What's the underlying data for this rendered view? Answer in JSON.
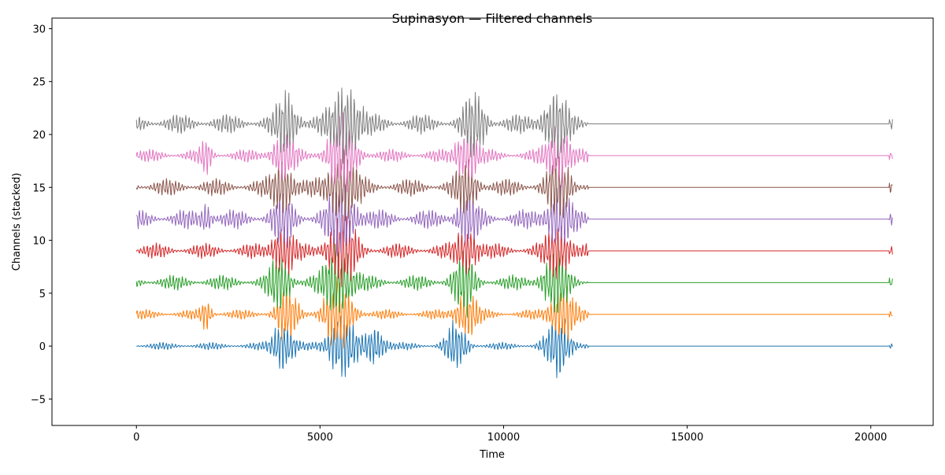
{
  "chart_data": {
    "type": "line",
    "title": "Supinasyon — Filtered channels",
    "xlabel": "Time",
    "ylabel": "Channels (stacked)",
    "xlim": [
      -2300,
      21700
    ],
    "ylim": [
      -7.5,
      31
    ],
    "x_ticks": [
      0,
      5000,
      10000,
      15000,
      20000
    ],
    "y_ticks": [
      -5,
      0,
      5,
      10,
      15,
      20,
      25,
      30
    ],
    "grid": false,
    "legend": false,
    "x_range": [
      0,
      20600
    ],
    "active_end": 12300,
    "tail_start": 20500,
    "series": [
      {
        "offset": 0,
        "color": "#1f77b4",
        "base_amp": 0.35,
        "bursts": [
          [
            4000,
            300,
            2.6
          ],
          [
            5600,
            400,
            3.2
          ],
          [
            6500,
            300,
            2.0
          ],
          [
            8700,
            300,
            2.4
          ],
          [
            11500,
            350,
            3.0
          ]
        ],
        "ymin": -5.8,
        "ymax": 5.0
      },
      {
        "offset": 3,
        "color": "#ff7f0e",
        "base_amp": 0.45,
        "bursts": [
          [
            1900,
            150,
            1.5
          ],
          [
            4100,
            300,
            2.5
          ],
          [
            5500,
            400,
            3.5
          ],
          [
            9000,
            300,
            2.5
          ],
          [
            11600,
            350,
            3.0
          ]
        ],
        "ymin": -4.0,
        "ymax": 8.2
      },
      {
        "offset": 6,
        "color": "#2ca02c",
        "base_amp": 0.7,
        "bursts": [
          [
            3900,
            300,
            2.5
          ],
          [
            5500,
            400,
            3.6
          ],
          [
            8900,
            300,
            2.8
          ],
          [
            11400,
            350,
            3.0
          ]
        ],
        "ymin": 0.0,
        "ymax": 11.0
      },
      {
        "offset": 9,
        "color": "#d62728",
        "base_amp": 0.7,
        "bursts": [
          [
            4000,
            300,
            2.6
          ],
          [
            5600,
            400,
            3.6
          ],
          [
            9000,
            300,
            2.5
          ],
          [
            11500,
            350,
            2.8
          ]
        ],
        "ymin": 4.0,
        "ymax": 14.5
      },
      {
        "offset": 12,
        "color": "#9467bd",
        "base_amp": 0.9,
        "bursts": [
          [
            1900,
            150,
            1.6
          ],
          [
            4000,
            300,
            2.3
          ],
          [
            5600,
            400,
            3.4
          ],
          [
            9000,
            300,
            2.4
          ],
          [
            11500,
            350,
            2.8
          ]
        ],
        "ymin": 6.5,
        "ymax": 17.5
      },
      {
        "offset": 15,
        "color": "#8c564b",
        "base_amp": 0.8,
        "bursts": [
          [
            4000,
            300,
            2.8
          ],
          [
            5600,
            400,
            3.8
          ],
          [
            9000,
            300,
            2.5
          ],
          [
            11500,
            350,
            2.8
          ]
        ],
        "ymin": 9.5,
        "ymax": 21.0
      },
      {
        "offset": 18,
        "color": "#e377c2",
        "base_amp": 0.6,
        "bursts": [
          [
            1900,
            150,
            1.6
          ],
          [
            4000,
            300,
            2.6
          ],
          [
            5600,
            400,
            3.6
          ],
          [
            9000,
            300,
            2.8
          ],
          [
            11500,
            350,
            3.0
          ]
        ],
        "ymin": 12.0,
        "ymax": 24.0
      },
      {
        "offset": 21,
        "color": "#7f7f7f",
        "base_amp": 0.9,
        "bursts": [
          [
            4100,
            300,
            2.8
          ],
          [
            5700,
            400,
            4.0
          ],
          [
            9200,
            300,
            3.0
          ],
          [
            11400,
            350,
            3.0
          ]
        ],
        "ymin": 14.0,
        "ymax": 28.9
      }
    ]
  }
}
